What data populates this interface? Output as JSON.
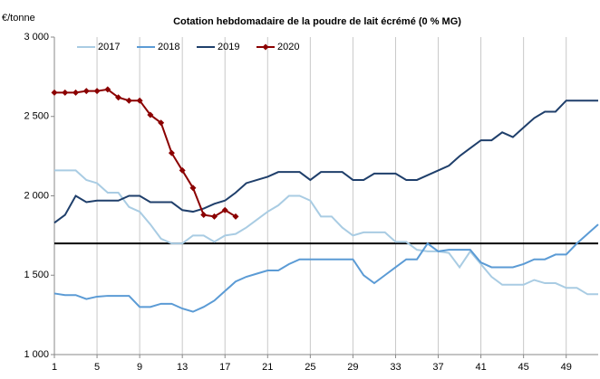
{
  "chart_data": {
    "type": "line",
    "title": "Cotation hebdomadaire de la poudre de lait écrémé (0 % MG)",
    "ylabel": "€/tonne",
    "x": [
      1,
      2,
      3,
      4,
      5,
      6,
      7,
      8,
      9,
      10,
      11,
      12,
      13,
      14,
      15,
      16,
      17,
      18,
      19,
      20,
      21,
      22,
      23,
      24,
      25,
      26,
      27,
      28,
      29,
      30,
      31,
      32,
      33,
      34,
      35,
      36,
      37,
      38,
      39,
      40,
      41,
      42,
      43,
      44,
      45,
      46,
      47,
      48,
      49,
      50,
      51,
      52
    ],
    "xlim": [
      1,
      52
    ],
    "xticks": [
      1,
      5,
      9,
      13,
      17,
      21,
      25,
      29,
      33,
      37,
      41,
      45,
      49
    ],
    "ylim": [
      1000,
      3000
    ],
    "yticks": [
      {
        "value": 1000,
        "label": "1 000"
      },
      {
        "value": 1500,
        "label": "1 500"
      },
      {
        "value": 2000,
        "label": "2 000"
      },
      {
        "value": 2500,
        "label": "2 500"
      },
      {
        "value": 3000,
        "label": "3 000"
      }
    ],
    "grid": "x",
    "reference_line": 1700,
    "legend": "top",
    "series": [
      {
        "name": "2017",
        "color": "#a9cce3",
        "values": [
          2160,
          2160,
          2160,
          2100,
          2080,
          2020,
          2020,
          1930,
          1900,
          1820,
          1730,
          1700,
          1700,
          1750,
          1750,
          1710,
          1750,
          1760,
          1800,
          1850,
          1900,
          1940,
          2000,
          2000,
          1970,
          1870,
          1870,
          1800,
          1750,
          1770,
          1770,
          1770,
          1710,
          1710,
          1660,
          1650,
          1650,
          1640,
          1550,
          1650,
          1570,
          1490,
          1440,
          1440,
          1440,
          1470,
          1450,
          1450,
          1420,
          1420,
          1380,
          1380
        ]
      },
      {
        "name": "2018",
        "color": "#5b9bd5",
        "values": [
          1385,
          1375,
          1375,
          1350,
          1365,
          1370,
          1370,
          1370,
          1300,
          1300,
          1320,
          1320,
          1290,
          1270,
          1300,
          1340,
          1400,
          1460,
          1490,
          1510,
          1530,
          1530,
          1570,
          1600,
          1600,
          1600,
          1600,
          1600,
          1600,
          1500,
          1450,
          1500,
          1550,
          1600,
          1600,
          1700,
          1650,
          1660,
          1660,
          1660,
          1580,
          1550,
          1550,
          1550,
          1570,
          1600,
          1600,
          1630,
          1630,
          1700,
          1760,
          1820
        ]
      },
      {
        "name": "2019",
        "color": "#1f3f6b",
        "values": [
          1830,
          1880,
          2000,
          1960,
          1970,
          1970,
          1970,
          2000,
          2000,
          1960,
          1960,
          1960,
          1910,
          1900,
          1920,
          1950,
          1970,
          2020,
          2080,
          2100,
          2120,
          2150,
          2150,
          2150,
          2100,
          2150,
          2150,
          2150,
          2100,
          2100,
          2140,
          2140,
          2140,
          2100,
          2100,
          2130,
          2160,
          2190,
          2250,
          2300,
          2350,
          2350,
          2400,
          2370,
          2430,
          2490,
          2530,
          2530,
          2600,
          2600,
          2600,
          2600
        ]
      },
      {
        "name": "2020",
        "color": "#8b0000",
        "marker": "diamond",
        "values": [
          2650,
          2650,
          2650,
          2660,
          2660,
          2670,
          2620,
          2600,
          2600,
          2510,
          2460,
          2270,
          2160,
          2050,
          1880,
          1870,
          1910,
          1870,
          null,
          null,
          null,
          null,
          null,
          null,
          null,
          null,
          null,
          null,
          null,
          null,
          null,
          null,
          null,
          null,
          null,
          null,
          null,
          null,
          null,
          null,
          null,
          null,
          null,
          null,
          null,
          null,
          null,
          null,
          null,
          null,
          null,
          null
        ]
      }
    ]
  }
}
